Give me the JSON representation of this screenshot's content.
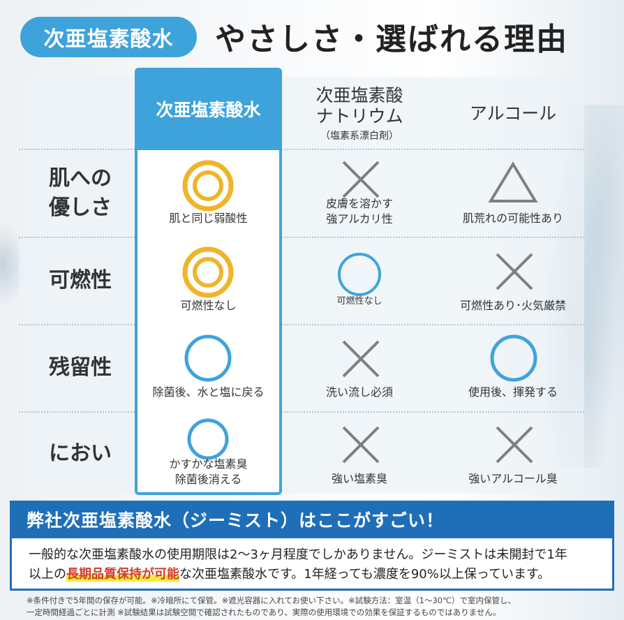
{
  "header": {
    "badge": "次亜塩素酸水",
    "heading": "やさしさ・選ばれる理由"
  },
  "columns": [
    {
      "main": "次亜塩素酸水",
      "sub": ""
    },
    {
      "main": "次亜塩素酸\nナトリウム",
      "sub": "（塩素系漂白剤）"
    },
    {
      "main": "アルコール",
      "sub": ""
    }
  ],
  "rows": [
    {
      "label": "肌への\n優しさ",
      "cells": [
        {
          "symbol": "double-circle",
          "note": "肌と同じ弱酸性"
        },
        {
          "symbol": "cross",
          "note": "皮膚を溶かす\n強アルカリ性"
        },
        {
          "symbol": "triangle",
          "note": "肌荒れの可能性あり"
        }
      ]
    },
    {
      "label": "可燃性",
      "cells": [
        {
          "symbol": "double-circle",
          "note": "可燃性なし"
        },
        {
          "symbol": "circle",
          "note": "可燃性なし"
        },
        {
          "symbol": "cross",
          "note": "可燃性あり･火気厳禁"
        }
      ]
    },
    {
      "label": "残留性",
      "cells": [
        {
          "symbol": "circle",
          "note": "除菌後、水と塩に戻る"
        },
        {
          "symbol": "cross",
          "note": "洗い流し必須"
        },
        {
          "symbol": "circle",
          "note": "使用後、揮発する"
        }
      ]
    },
    {
      "label": "におい",
      "cells": [
        {
          "symbol": "circle",
          "note": "かすかな塩素臭\n除菌後消える"
        },
        {
          "symbol": "cross",
          "note": "強い塩素臭"
        },
        {
          "symbol": "cross",
          "note": "強いアルコール臭"
        }
      ]
    }
  ],
  "bottom": {
    "title": "弊社次亜塩素酸水（ジーミスト）はここがすごい！",
    "line1": "一般的な次亜塩素酸水の使用期限は2～3ヶ月程度でしかありません。ジーミストは未開封で1年",
    "line2_pre": "以上の",
    "line2_highlight": "長期品質保持が可能",
    "line2_post": "な次亜塩素酸水です。1年経っても濃度を90%以上保っています。"
  },
  "footnote": {
    "line1": "※条件付きで5年間の保存が可能。※冷暗所にて保管。※遮光容器に入れてお使い下さい。※試験方法：室温（1～30℃）で室内保管し、",
    "line2": "一定時間経過ごとに計測 ※試験結果は試験空間で確認されたものであり、実際の使用環境での効果を保証するものではありません。"
  },
  "colors": {
    "accent_blue": "#3fa3db",
    "dark_blue": "#1f6fb8",
    "gold": "#f0b429",
    "gray_symbol": "#7f7f7f",
    "highlight_red": "#d13b2a"
  }
}
